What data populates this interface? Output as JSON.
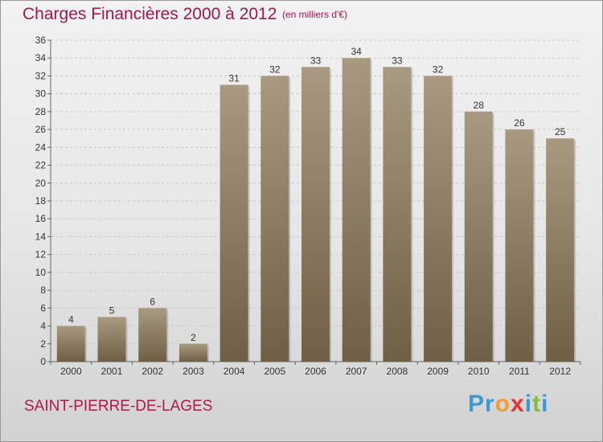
{
  "title": "Charges Financières 2000 à 2012",
  "subtitle": "(en milliers d'€)",
  "town": "SAINT-PIERRE-DE-LAGES",
  "logo": {
    "letters": [
      "P",
      "r",
      "o",
      "x",
      "i",
      "t",
      "i"
    ],
    "colors": [
      "#3d9ad1",
      "#3d9ad1",
      "#f0a12b",
      "#e3342f",
      "#3d9ad1",
      "#7bbf3a",
      "#3d9ad1"
    ]
  },
  "colors": {
    "bar_top": "#a89a80",
    "bar_bottom": "#6e5f45",
    "title": "#a3164d",
    "grid": "#c8c8c8"
  },
  "chart_data": {
    "type": "bar",
    "title": "Charges Financières 2000 à 2012",
    "subtitle": "(en milliers d'€)",
    "categories": [
      "2000",
      "2001",
      "2002",
      "2003",
      "2004",
      "2005",
      "2006",
      "2007",
      "2008",
      "2009",
      "2010",
      "2011",
      "2012"
    ],
    "values": [
      4,
      5,
      6,
      2,
      31,
      32,
      33,
      34,
      33,
      32,
      28,
      26,
      25
    ],
    "ylim": [
      0,
      36
    ],
    "yticks": [
      0,
      2,
      4,
      6,
      8,
      10,
      12,
      14,
      16,
      18,
      20,
      22,
      24,
      26,
      28,
      30,
      32,
      34,
      36
    ],
    "grid": true,
    "xlabel": "",
    "ylabel": ""
  }
}
